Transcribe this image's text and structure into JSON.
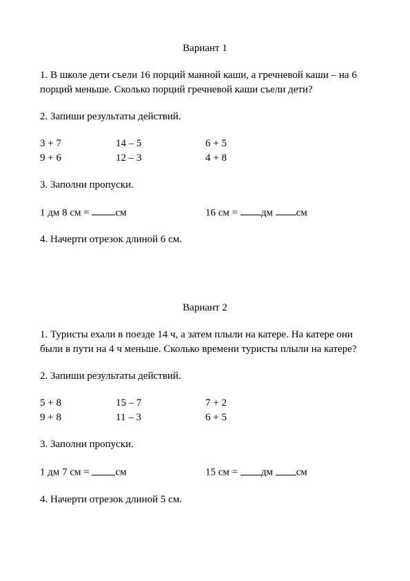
{
  "variants": [
    {
      "title": "Вариант 1",
      "q1": "1. В школе дети съели 16 порций манной каши, а гречневой каши – на 6 порций меньше. Сколько порций гречневой каши съели дети?",
      "q2_label": "2. Запиши результаты действий.",
      "q2_rows": [
        {
          "a": "3 + 7",
          "b": "14 – 5",
          "c": "6 + 5"
        },
        {
          "a": "9 + 6",
          "b": "12 – 3",
          "c": "4 + 8"
        }
      ],
      "q3_label": "3. Заполни пропуски.",
      "q3_left_pre": "1 дм 8 см = ",
      "q3_left_post": "см",
      "q3_right_pre": "16 см = ",
      "q3_right_mid": "дм ",
      "q3_right_post": "см",
      "q4": "4. Начерти отрезок длиной 6 см."
    },
    {
      "title": "Вариант 2",
      "q1": "1. Туристы ехали в поезде 14 ч, а затем плыли на катере. На катере они были в пути на 4 ч меньше. Сколько времени туристы плыли на катере?",
      "q2_label": "2. Запиши результаты действий.",
      "q2_rows": [
        {
          "a": "5 + 8",
          "b": "15 – 7",
          "c": "7 + 2"
        },
        {
          "a": "9 + 8",
          "b": "11 – 3",
          "c": "6 + 5"
        }
      ],
      "q3_label": "3. Заполни пропуски.",
      "q3_left_pre": "1 дм 7 см = ",
      "q3_left_post": "см",
      "q3_right_pre": "15 см = ",
      "q3_right_mid": "дм ",
      "q3_right_post": "см",
      "q4": "4. Начерти отрезок длиной 5 см."
    }
  ]
}
